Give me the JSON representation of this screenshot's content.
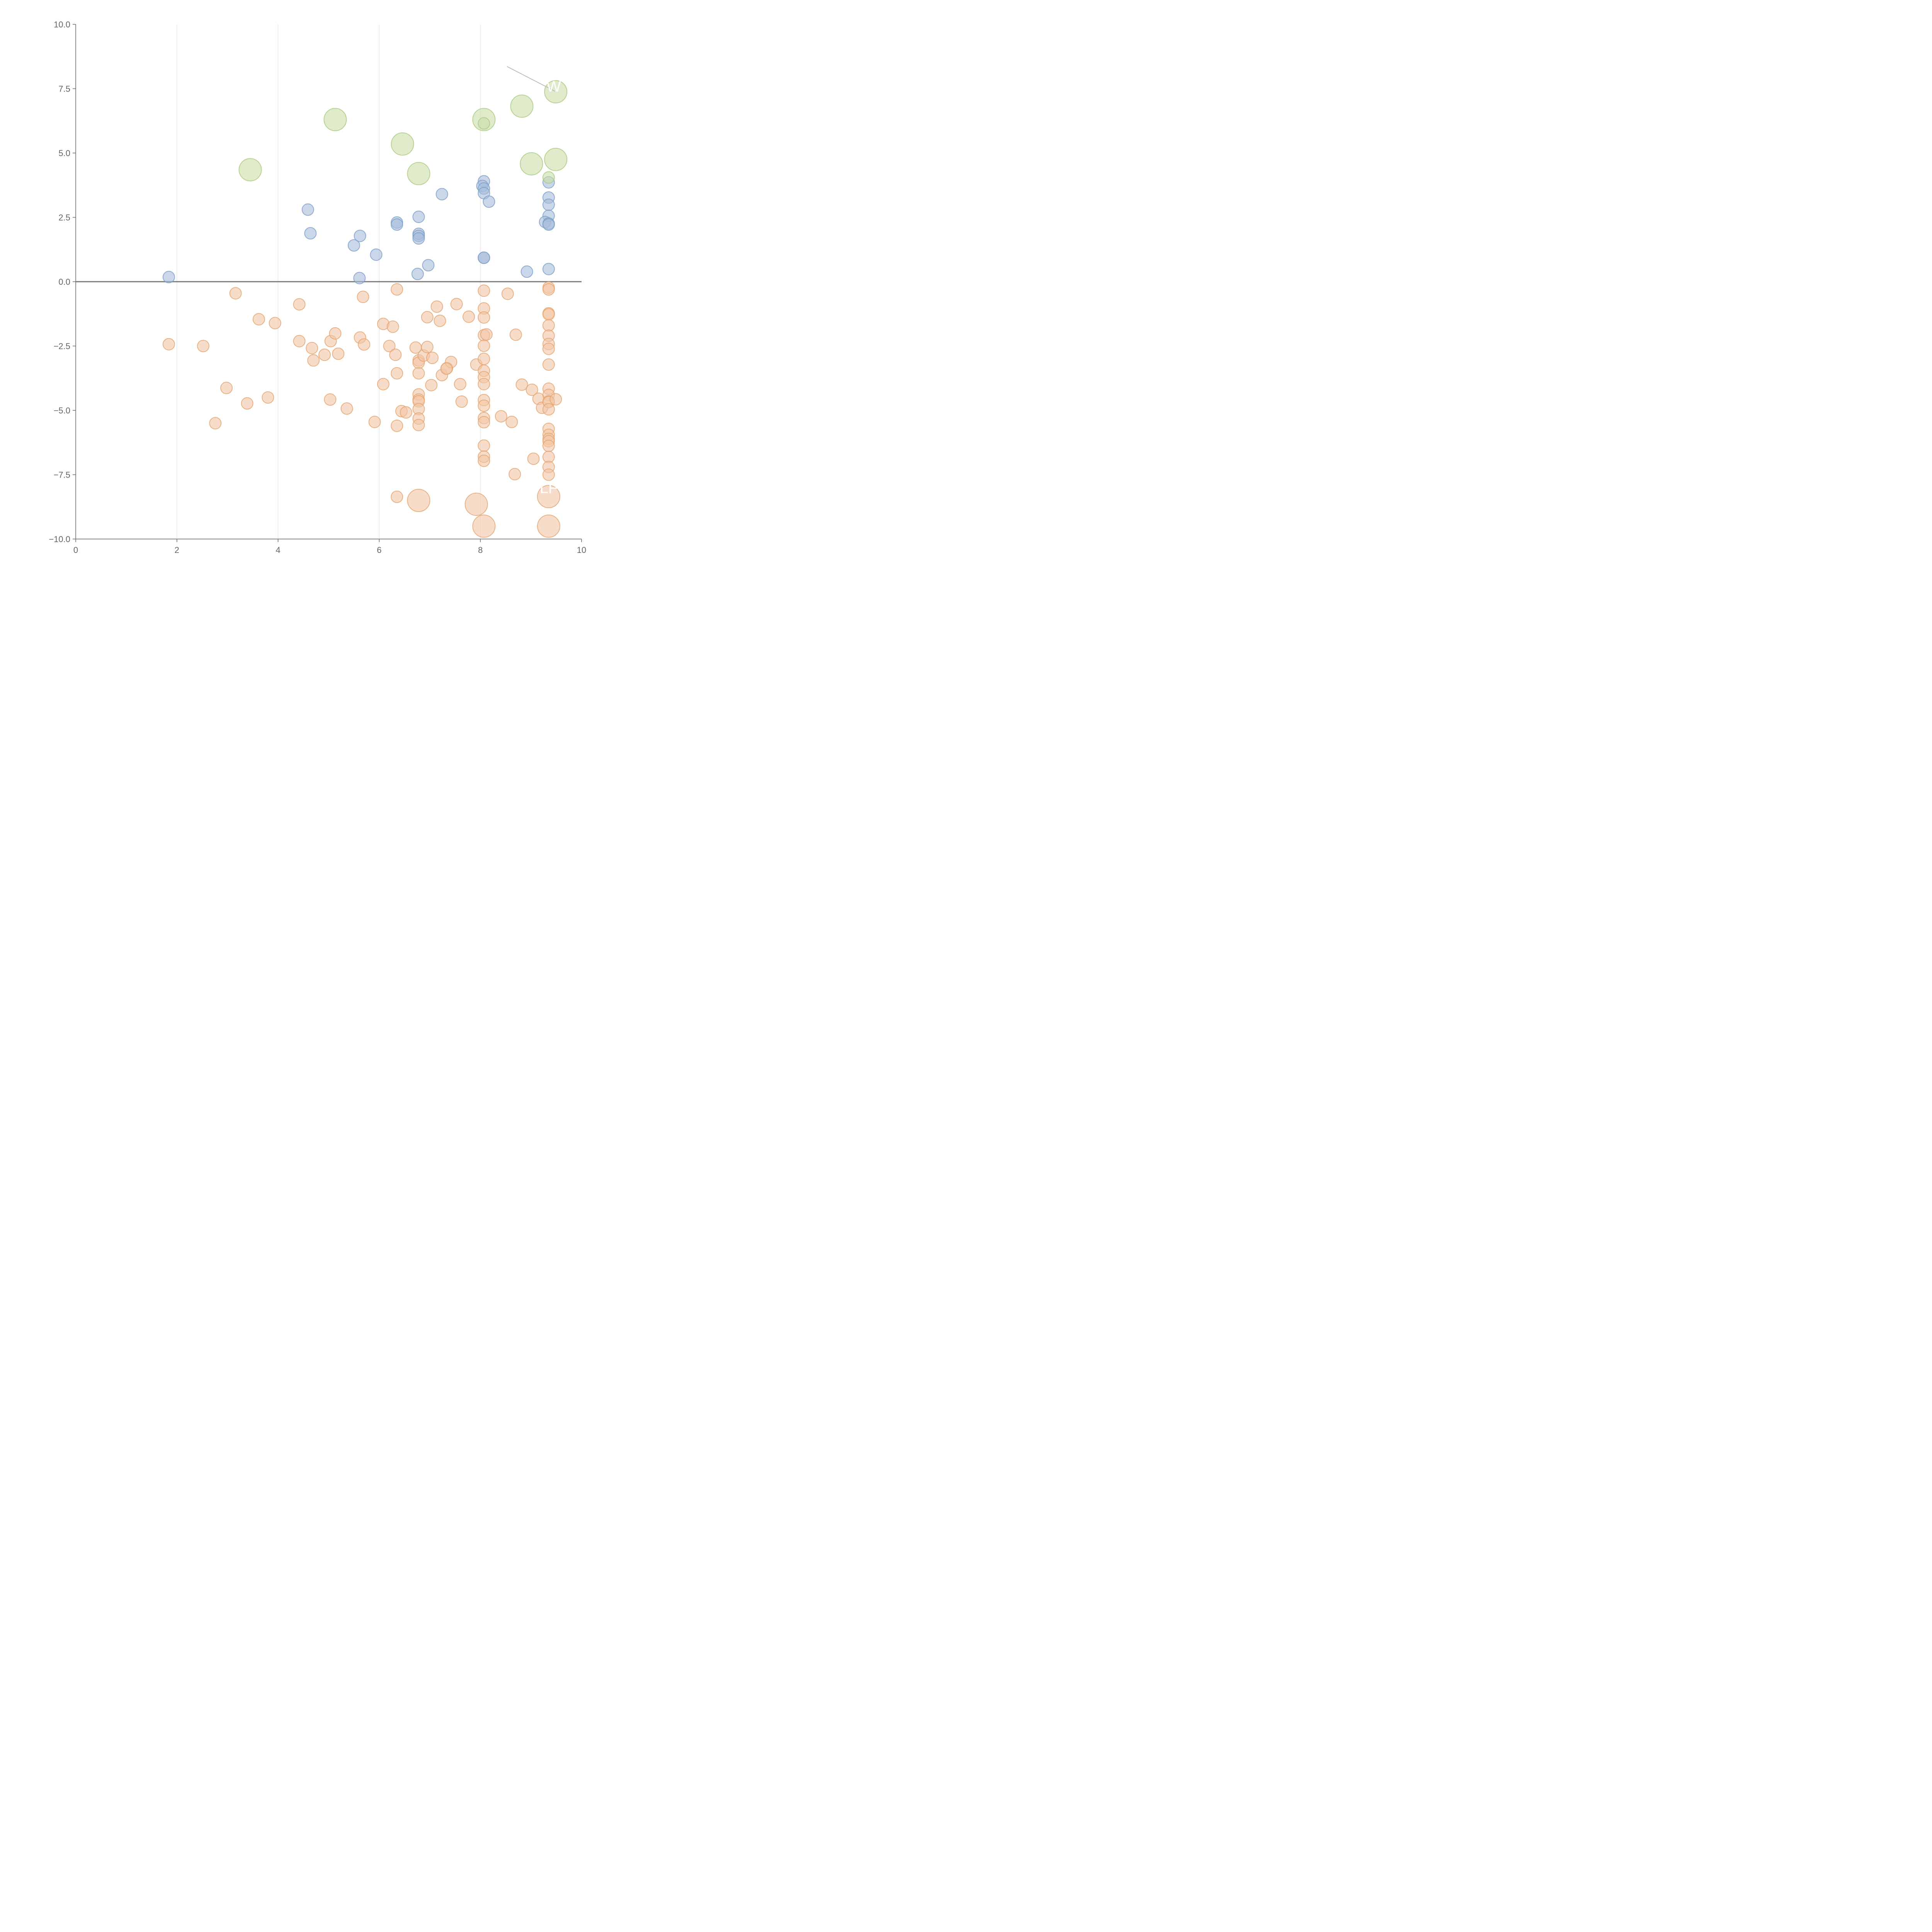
{
  "chart_data": {
    "type": "scatter",
    "xlim": [
      0,
      10
    ],
    "ylim": [
      -10,
      10
    ],
    "x_ticks": [
      "0",
      "2",
      "4",
      "6",
      "8",
      "10"
    ],
    "y_ticks": [
      "10.0",
      "7.5",
      "5.0",
      "2.5",
      "0.0",
      "−2.5",
      "−5.0",
      "−7.5",
      "−10.0"
    ],
    "grid": "vertical",
    "reference_line_y": 0,
    "annotations": [
      {
        "text": "W",
        "x": 9.45,
        "y": 7.6
      },
      {
        "text": "LF",
        "x": 9.35,
        "y": -8.0
      }
    ],
    "series": [
      {
        "color": "#a6bddb",
        "stroke": "#7a9cc8",
        "size": "small",
        "points": [
          [
            1.84,
            0.18
          ],
          [
            4.59,
            2.8
          ],
          [
            4.64,
            1.88
          ],
          [
            5.5,
            1.41
          ],
          [
            5.62,
            1.78
          ],
          [
            5.61,
            0.14
          ],
          [
            5.94,
            1.05
          ],
          [
            6.35,
            2.3
          ],
          [
            6.35,
            2.22
          ],
          [
            6.78,
            2.52
          ],
          [
            6.78,
            1.86
          ],
          [
            6.78,
            1.78
          ],
          [
            6.78,
            1.68
          ],
          [
            6.76,
            0.3
          ],
          [
            6.97,
            0.64
          ],
          [
            7.24,
            3.4
          ],
          [
            8.07,
            3.9
          ],
          [
            8.04,
            3.72
          ],
          [
            8.07,
            3.62
          ],
          [
            8.07,
            3.44
          ],
          [
            8.17,
            3.11
          ],
          [
            8.07,
            0.93
          ],
          [
            8.07,
            0.93
          ],
          [
            8.92,
            0.39
          ],
          [
            9.35,
            3.86
          ],
          [
            9.35,
            3.27
          ],
          [
            9.35,
            2.99
          ],
          [
            9.35,
            2.56
          ],
          [
            9.28,
            2.32
          ],
          [
            9.35,
            2.26
          ],
          [
            9.35,
            2.22
          ],
          [
            9.35,
            0.49
          ]
        ]
      },
      {
        "color": "#f2c7a5",
        "stroke": "#e3a36e",
        "size": "small",
        "points": [
          [
            1.84,
            -2.43
          ],
          [
            3.16,
            -0.45
          ],
          [
            3.62,
            -1.46
          ],
          [
            3.94,
            -1.61
          ],
          [
            2.52,
            -2.5
          ],
          [
            2.98,
            -4.13
          ],
          [
            3.39,
            -4.73
          ],
          [
            2.76,
            -5.5
          ],
          [
            3.8,
            -4.5
          ],
          [
            4.42,
            -0.88
          ],
          [
            4.42,
            -2.31
          ],
          [
            4.67,
            -2.58
          ],
          [
            4.7,
            -3.06
          ],
          [
            4.92,
            -2.84
          ],
          [
            5.04,
            -2.31
          ],
          [
            5.13,
            -2.01
          ],
          [
            5.19,
            -2.8
          ],
          [
            5.03,
            -4.58
          ],
          [
            5.36,
            -4.93
          ],
          [
            5.62,
            -2.17
          ],
          [
            5.68,
            -0.59
          ],
          [
            5.7,
            -2.44
          ],
          [
            5.91,
            -5.45
          ],
          [
            6.08,
            -1.64
          ],
          [
            6.27,
            -1.75
          ],
          [
            6.2,
            -2.5
          ],
          [
            6.32,
            -2.84
          ],
          [
            6.35,
            -3.56
          ],
          [
            6.08,
            -3.98
          ],
          [
            6.35,
            -0.3
          ],
          [
            6.44,
            -5.03
          ],
          [
            6.53,
            -5.08
          ],
          [
            6.35,
            -5.6
          ],
          [
            6.35,
            -8.36
          ],
          [
            6.72,
            -2.56
          ],
          [
            6.78,
            -3.06
          ],
          [
            6.78,
            -3.15
          ],
          [
            6.78,
            -3.56
          ],
          [
            6.88,
            -2.87
          ],
          [
            6.95,
            -2.54
          ],
          [
            7.05,
            -2.96
          ],
          [
            6.95,
            -1.38
          ],
          [
            7.14,
            -0.97
          ],
          [
            7.2,
            -1.52
          ],
          [
            7.03,
            -4.02
          ],
          [
            7.24,
            -3.63
          ],
          [
            7.34,
            -3.36
          ],
          [
            7.42,
            -3.12
          ],
          [
            7.33,
            -3.38
          ],
          [
            6.78,
            -4.38
          ],
          [
            6.78,
            -4.58
          ],
          [
            6.78,
            -4.65
          ],
          [
            6.78,
            -4.95
          ],
          [
            6.78,
            -5.32
          ],
          [
            6.78,
            -5.57
          ],
          [
            7.53,
            -0.87
          ],
          [
            7.6,
            -3.98
          ],
          [
            7.63,
            -4.66
          ],
          [
            7.77,
            -1.36
          ],
          [
            7.92,
            -3.22
          ],
          [
            8.07,
            -0.35
          ],
          [
            8.07,
            -1.04
          ],
          [
            8.07,
            -1.39
          ],
          [
            8.07,
            -2.08
          ],
          [
            8.12,
            -2.05
          ],
          [
            8.07,
            -2.49
          ],
          [
            8.07,
            -3.0
          ],
          [
            8.07,
            -3.46
          ],
          [
            8.07,
            -3.71
          ],
          [
            8.07,
            -3.98
          ],
          [
            8.07,
            -4.6
          ],
          [
            8.07,
            -4.82
          ],
          [
            8.07,
            -5.3
          ],
          [
            8.07,
            -5.46
          ],
          [
            8.07,
            -6.37
          ],
          [
            8.07,
            -6.8
          ],
          [
            8.07,
            -6.96
          ],
          [
            8.41,
            -5.23
          ],
          [
            8.62,
            -5.45
          ],
          [
            8.54,
            -0.47
          ],
          [
            8.7,
            -2.06
          ],
          [
            8.82,
            -4.0
          ],
          [
            9.02,
            -4.2
          ],
          [
            9.05,
            -6.88
          ],
          [
            8.68,
            -7.48
          ],
          [
            9.15,
            -4.55
          ],
          [
            9.22,
            -4.9
          ],
          [
            9.35,
            -0.23
          ],
          [
            9.35,
            -0.3
          ],
          [
            9.35,
            -1.23
          ],
          [
            9.35,
            -1.27
          ],
          [
            9.35,
            -1.7
          ],
          [
            9.35,
            -2.1
          ],
          [
            9.35,
            -2.42
          ],
          [
            9.35,
            -2.61
          ],
          [
            9.35,
            -3.22
          ],
          [
            9.35,
            -4.16
          ],
          [
            9.35,
            -4.4
          ],
          [
            9.35,
            -4.65
          ],
          [
            9.35,
            -4.68
          ],
          [
            9.35,
            -4.96
          ],
          [
            9.49,
            -4.57
          ],
          [
            9.35,
            -5.72
          ],
          [
            9.35,
            -5.95
          ],
          [
            9.35,
            -6.11
          ],
          [
            9.35,
            -6.2
          ],
          [
            9.35,
            -6.38
          ],
          [
            9.35,
            -6.81
          ],
          [
            9.35,
            -7.2
          ],
          [
            9.35,
            -7.5
          ]
        ]
      },
      {
        "color": "#f2c7a5",
        "stroke": "#e3a36e",
        "size": "large",
        "points": [
          [
            6.78,
            -8.5
          ],
          [
            7.92,
            -8.65
          ],
          [
            8.07,
            -9.5
          ],
          [
            9.35,
            -8.35
          ],
          [
            9.35,
            -9.5
          ]
        ]
      },
      {
        "color": "#c9dea6",
        "stroke": "#a8c97e",
        "size": "large",
        "points": [
          [
            3.45,
            4.35
          ],
          [
            5.13,
            6.3
          ],
          [
            6.46,
            5.35
          ],
          [
            6.78,
            4.2
          ],
          [
            8.07,
            6.3
          ],
          [
            8.82,
            6.82
          ],
          [
            9.01,
            4.58
          ],
          [
            9.49,
            4.75
          ],
          [
            9.49,
            7.38
          ]
        ]
      },
      {
        "color": "#c9dea6",
        "stroke": "#a8c97e",
        "size": "small",
        "points": [
          [
            8.07,
            6.15
          ],
          [
            9.35,
            4.05
          ]
        ]
      }
    ]
  }
}
